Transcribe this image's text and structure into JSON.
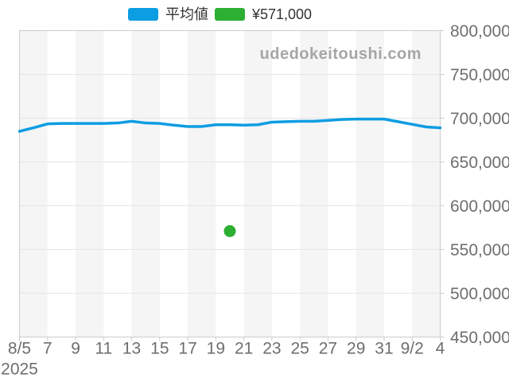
{
  "page": {
    "background_color": "#ffffff"
  },
  "legend": {
    "items": [
      {
        "label": "平均値",
        "color": "#0d9de2",
        "kind": "average-line-series"
      },
      {
        "label": "¥571,000",
        "color": "#2daf33",
        "kind": "price-point"
      }
    ]
  },
  "watermark": "udedokeitoushi.com",
  "chart_data": {
    "type": "line",
    "title": "",
    "watermark": "udedokeitoushi.com",
    "legend_position": "top-center",
    "grid": {
      "band_color": "#f5f5f5",
      "gridline_color": "#e6e6e6",
      "border_color": "#cccccc",
      "axis_label_color": "#6e6e6e",
      "grid_on": true
    },
    "x_axis": {
      "tick_labels": [
        "8/5",
        "7",
        "9",
        "11",
        "13",
        "15",
        "17",
        "19",
        "21",
        "23",
        "25",
        "27",
        "29",
        "31",
        "9/2",
        "4"
      ],
      "tick_days": [
        0,
        2,
        4,
        6,
        8,
        10,
        12,
        14,
        16,
        18,
        20,
        22,
        24,
        26,
        28,
        30
      ],
      "year_label": "2025",
      "days_total": 30,
      "start_date": "8/5/2025",
      "end_date": "9/4/2025"
    },
    "y_axis": {
      "min": 450000,
      "max": 800000,
      "tick_step": 50000,
      "tick_values": [
        800000,
        750000,
        700000,
        650000,
        600000,
        550000,
        500000,
        450000
      ],
      "tick_labels": [
        "800,000",
        "750,000",
        "700,000",
        "650,000",
        "600,000",
        "550,000",
        "500,000",
        "450,000"
      ]
    },
    "series": [
      {
        "name": "平均値",
        "color": "#0d9de2",
        "line_width": 3.5,
        "x_start_day": 0,
        "x_step_days": 1,
        "values": [
          685000,
          689000,
          693500,
          694000,
          694000,
          694000,
          694000,
          694500,
          696500,
          694500,
          694000,
          692000,
          690500,
          690500,
          692500,
          692500,
          692000,
          692500,
          695500,
          696000,
          696500,
          696500,
          697500,
          698500,
          699000,
          699000,
          699000,
          696000,
          693000,
          690000,
          689000
        ]
      }
    ],
    "point": {
      "label": "¥571,000",
      "color": "#2daf33",
      "day": 15,
      "date": "8/20",
      "value": 571000,
      "radius": 7.5
    }
  }
}
